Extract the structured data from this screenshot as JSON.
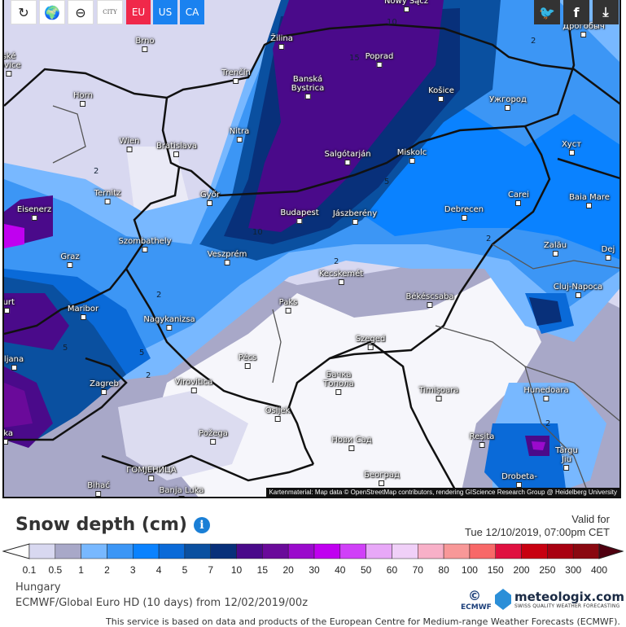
{
  "toolbar": {
    "buttons": [
      {
        "name": "refresh-button",
        "icon": "refresh-icon",
        "label": "↻"
      },
      {
        "name": "globe-location-button",
        "icon": "globe-icon",
        "label": "🌍"
      },
      {
        "name": "zoom-out-button",
        "icon": "zoom-out-icon",
        "label": "⊖"
      },
      {
        "name": "city-toggle-button",
        "icon": "city-icon",
        "label": "CITY"
      }
    ],
    "regions": [
      {
        "label": "EU",
        "color": "#f0284a"
      },
      {
        "label": "US",
        "color": "#1a82f0"
      },
      {
        "label": "CA",
        "color": "#1a82f0"
      }
    ]
  },
  "share": {
    "twitter": "twitter-icon",
    "facebook": "facebook-icon",
    "download": "download-icon"
  },
  "map": {
    "cities": [
      "Brno",
      "Žilina",
      "Poprad",
      "Banská\nBystrica",
      "Košice",
      "Ужгород",
      "Trenčín",
      "Horn",
      "Wien",
      "Bratislava",
      "Nitra",
      "Salgótarján",
      "Miskolc",
      "Хуст",
      "Győr",
      "Ternitz",
      "Eisenerz",
      "Budapest",
      "Jászberény",
      "Debrecen",
      "Carei",
      "Baia Mare",
      "Graz",
      "Veszprém",
      "Szombathely",
      "Zalău",
      "Dej",
      "Kecskemét",
      "Cluj-Napoca",
      "Maribor",
      "Nagykanizsa",
      "Paks",
      "Békéscsaba",
      "Szeged",
      "Pécs",
      "Zagreb",
      "Virovitica",
      "Hunedoara",
      "Бачка\nТопола",
      "Timișoara",
      "Osijek",
      "Požega",
      "Reșita",
      "Нови Сад",
      "Târgu\nJiu",
      "ГОМЈЕНИЦА",
      "Bihać",
      "Banja Luka",
      "Београд",
      "Drobeta-",
      "Дрогобыч",
      "Nowy Sącz",
      "ljana",
      "furt",
      "ěka",
      "ské\njovice"
    ],
    "contour_labels": [
      "2",
      "2",
      "10",
      "5",
      "15",
      "2",
      "2",
      "5",
      "5",
      "2",
      "2",
      "2",
      "10"
    ],
    "attribution": "Kartenmaterial: Map data © OpenStreetMap contributors, rendering GIScience Research Group @ Heidelberg University"
  },
  "legend": {
    "title": "Snow depth (cm)",
    "info_icon": "info-icon",
    "valid_label": "Valid for",
    "valid_time": "Tue 12/10/2019, 07:00pm CET",
    "ticks": [
      "0.1",
      "0.5",
      "1",
      "2",
      "3",
      "4",
      "5",
      "7",
      "10",
      "15",
      "20",
      "30",
      "40",
      "50",
      "60",
      "70",
      "80",
      "100",
      "150",
      "200",
      "250",
      "300",
      "400"
    ],
    "colors": [
      "#d8d8f0",
      "#a8a8c8",
      "#78b8ff",
      "#3c96f5",
      "#0a82ff",
      "#0a6ad8",
      "#0a50a0",
      "#08307a",
      "#4a0a8a",
      "#6a0a9a",
      "#9a0acc",
      "#c000f0",
      "#d040f8",
      "#e8a8f8",
      "#f0d0f8",
      "#f8b0c8",
      "#f89898",
      "#f86868",
      "#e01040",
      "#c80010",
      "#a80010",
      "#8a0810"
    ],
    "over_color": "#500010",
    "under_color": "#ffffff"
  },
  "info": {
    "region": "Hungary",
    "model": "ECMWF/Global Euro HD  (10 days)  from 12/02/2019/00z"
  },
  "logos": {
    "ecmwf": "ECMWF",
    "meteologix": "meteologix.com",
    "tagline": "SWISS QUALITY WEATHER FORECASTING"
  },
  "footer": "This service is based on data and products of the European Centre for Medium-range Weather Forecasts (ECMWF)."
}
